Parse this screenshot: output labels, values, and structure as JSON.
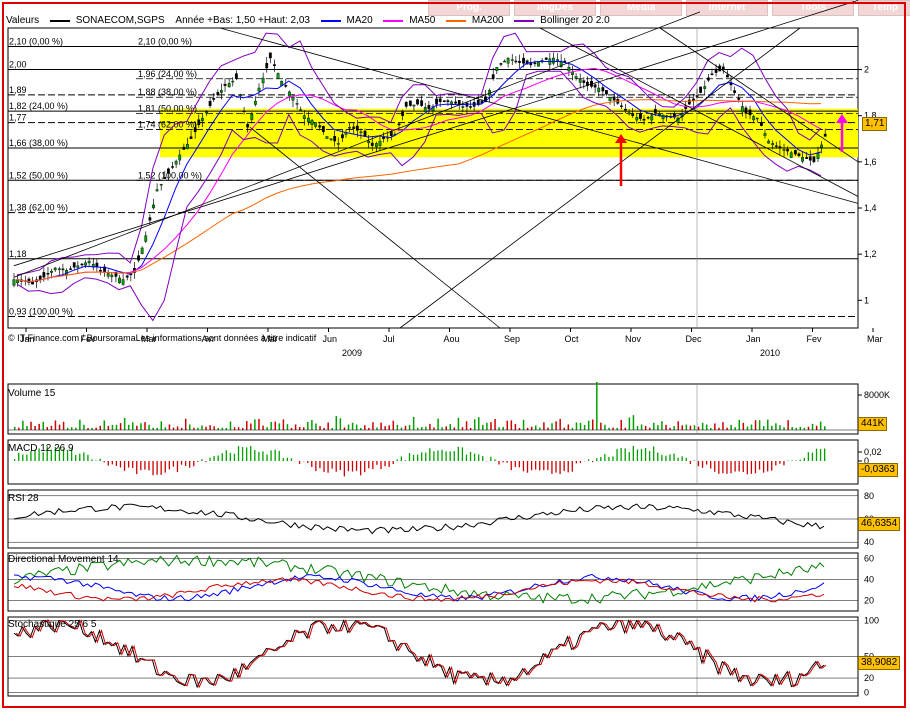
{
  "tabs": [
    "Prog.",
    "ImgDes",
    "Media",
    "Internet",
    "Tools",
    "Temp"
  ],
  "legend": {
    "prefix": "Valeurs",
    "main": "SONAECOM,SGPS",
    "range": "Année +Bas: 1,50 +Haut: 2,03",
    "ma20": "MA20",
    "ma50": "MA50",
    "ma200": "MA200",
    "bollinger": "Bollinger 20 2.0"
  },
  "colors": {
    "ma20": "#0000ff",
    "ma50": "#ff00ff",
    "ma200": "#ff6600",
    "bollinger": "#8000c0",
    "candle_up": "#00a000",
    "candle_down": "#000000",
    "highlight": "#ffff00",
    "arrow_red": "#ff0000",
    "arrow_pink": "#ff00ff",
    "value_box": "#ffc000"
  },
  "chart_data": [
    {
      "type": "line",
      "title": "SONAECOM,SGPS",
      "ylim": [
        0.88,
        2.18
      ],
      "y_ticks": [
        {
          "v": 1,
          "label": "1"
        },
        {
          "v": 1.2,
          "label": "1,2"
        },
        {
          "v": 1.4,
          "label": "1,4"
        },
        {
          "v": 1.6,
          "label": "1,6"
        },
        {
          "v": 1.8,
          "label": "1,8"
        },
        {
          "v": 2,
          "label": "2"
        }
      ],
      "x_months": [
        "Jan",
        "Fev",
        "Mar",
        "Avr",
        "Mai",
        "Jun",
        "Jul",
        "Aou",
        "Sep",
        "Oct",
        "Nov",
        "Dec",
        "Jan",
        "Fev",
        "Mar"
      ],
      "years": [
        "2009",
        "2010"
      ],
      "last_value": "1,71",
      "fib_levels_2009": [
        {
          "v": 2.1,
          "label": "2,10 (0,00 %)"
        },
        {
          "v": 2.0,
          "label": "2,00"
        },
        {
          "v": 1.89,
          "label": "1,89"
        },
        {
          "v": 1.82,
          "label": "1,82 (24,00 %)"
        },
        {
          "v": 1.77,
          "label": "1,77"
        },
        {
          "v": 1.66,
          "label": "1,66 (38,00 %)"
        },
        {
          "v": 1.52,
          "label": "1,52 (50,00 %)"
        },
        {
          "v": 1.38,
          "label": "1,38 (62,00 %)"
        },
        {
          "v": 1.18,
          "label": "1,18"
        },
        {
          "v": 0.93,
          "label": "0,93 (100,00 %)"
        }
      ],
      "fib_levels_recent": [
        {
          "v": 2.1,
          "label": "2,10 (0,00 %)"
        },
        {
          "v": 1.96,
          "label": "1,96 (24,00 %)"
        },
        {
          "v": 1.88,
          "label": "1,88 (38,00 %)"
        },
        {
          "v": 1.81,
          "label": "1,81 (50,00 %)"
        },
        {
          "v": 1.74,
          "label": "1,74 (62,00 %)"
        },
        {
          "v": 1.52,
          "label": "1,52 (100,00 %)"
        }
      ],
      "close_weekly": [
        1.09,
        1.07,
        1.1,
        1.14,
        1.13,
        1.15,
        1.17,
        1.13,
        1.11,
        1.09,
        1.12,
        1.28,
        1.48,
        1.55,
        1.63,
        1.7,
        1.79,
        1.87,
        1.93,
        1.96,
        1.75,
        1.92,
        2.05,
        1.95,
        1.88,
        1.8,
        1.77,
        1.71,
        1.68,
        1.75,
        1.73,
        1.67,
        1.7,
        1.72,
        1.84,
        1.85,
        1.83,
        1.86,
        1.86,
        1.84,
        1.84,
        1.86,
        2.01,
        2.05,
        2.03,
        2.02,
        2.04,
        2.05,
        2.03,
        1.97,
        1.93,
        1.92,
        1.88,
        1.84,
        1.8,
        1.78,
        1.81,
        1.8,
        1.79,
        1.85,
        1.9,
        1.98,
        2.0,
        1.9,
        1.81,
        1.79,
        1.69,
        1.66,
        1.64,
        1.62,
        1.6,
        1.71
      ]
    },
    {
      "type": "bar",
      "title": "Volume 15",
      "y_ticks": [
        {
          "v": 8000,
          "label": "8000K"
        }
      ],
      "last_value": "441K",
      "spike_label": ""
    },
    {
      "type": "bar",
      "title": "MACD 12 26 9",
      "y_ticks": [
        {
          "v": 0.02,
          "label": "0,02"
        },
        {
          "v": 0,
          "label": "0"
        }
      ],
      "last_value": "-0,0363"
    },
    {
      "type": "line",
      "title": "RSI 28",
      "ylim": [
        35,
        85
      ],
      "y_ticks": [
        {
          "v": 80,
          "label": "80"
        },
        {
          "v": 60,
          "label": "60"
        },
        {
          "v": 40,
          "label": "40"
        }
      ],
      "last_value": "46,6354"
    },
    {
      "type": "line",
      "title": "Directional Movement 14",
      "ylim": [
        10,
        65
      ],
      "y_ticks": [
        {
          "v": 60,
          "label": "60"
        },
        {
          "v": 40,
          "label": "40"
        },
        {
          "v": 20,
          "label": "20"
        }
      ]
    },
    {
      "type": "line",
      "title": "Stochastique 25 6 5",
      "ylim": [
        -5,
        105
      ],
      "y_ticks": [
        {
          "v": 100,
          "label": "100"
        },
        {
          "v": 50,
          "label": "50"
        },
        {
          "v": 20,
          "label": "20"
        },
        {
          "v": 0,
          "label": "0"
        }
      ],
      "last_value": "38,9082"
    }
  ],
  "source": "© IT-Finance.com / BoursoramaLes informations sont données à titre indicatif"
}
